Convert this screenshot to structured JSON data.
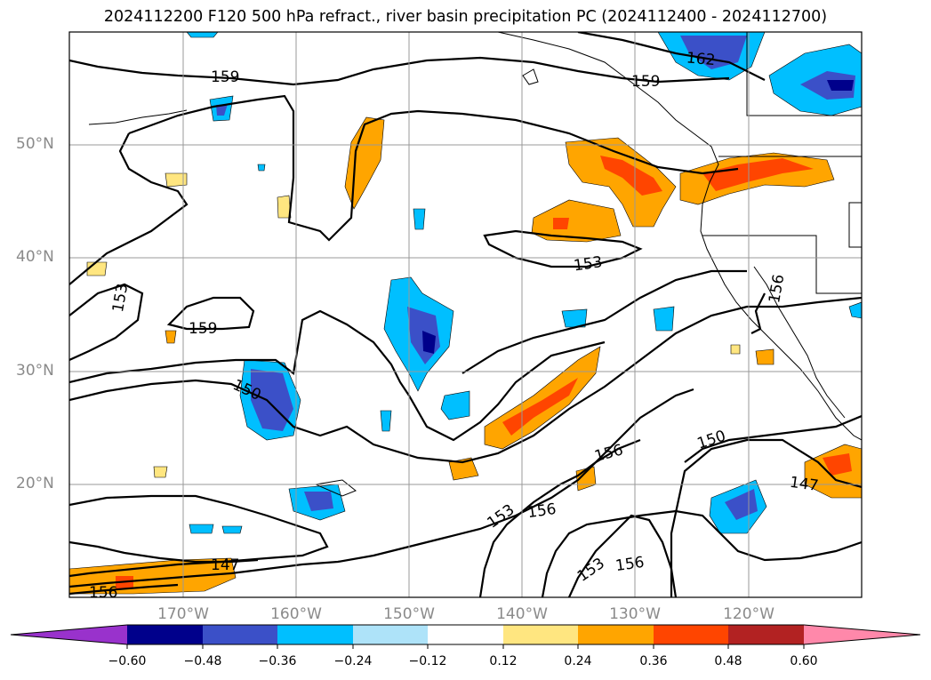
{
  "title": "2024112200 F120 500 hPa refract., river basin precipitation PC (2024112400 - 2024112700)",
  "axes": {
    "lat_labels": [
      "50°N",
      "40°N",
      "30°N",
      "20°N"
    ],
    "lon_labels": [
      "170°W",
      "160°W",
      "150°W",
      "140°W",
      "130°W",
      "120°W"
    ]
  },
  "contour_labels": [
    "159",
    "162",
    "159",
    "153",
    "159",
    "153",
    "156",
    "150",
    "150",
    "156",
    "153",
    "156",
    "153",
    "156",
    "147",
    "147",
    "156"
  ],
  "colorbar": {
    "ticks": [
      "−0.60",
      "−0.48",
      "−0.36",
      "−0.24",
      "−0.12",
      "0.12",
      "0.24",
      "0.36",
      "0.48",
      "0.60"
    ],
    "colors": [
      "#9932cc",
      "#00008b",
      "#3b50c8",
      "#00bfff",
      "#aee3f9",
      "#ffffff",
      "#ffe680",
      "#ffa500",
      "#ff4500",
      "#b22222",
      "#ff88aa"
    ]
  }
}
